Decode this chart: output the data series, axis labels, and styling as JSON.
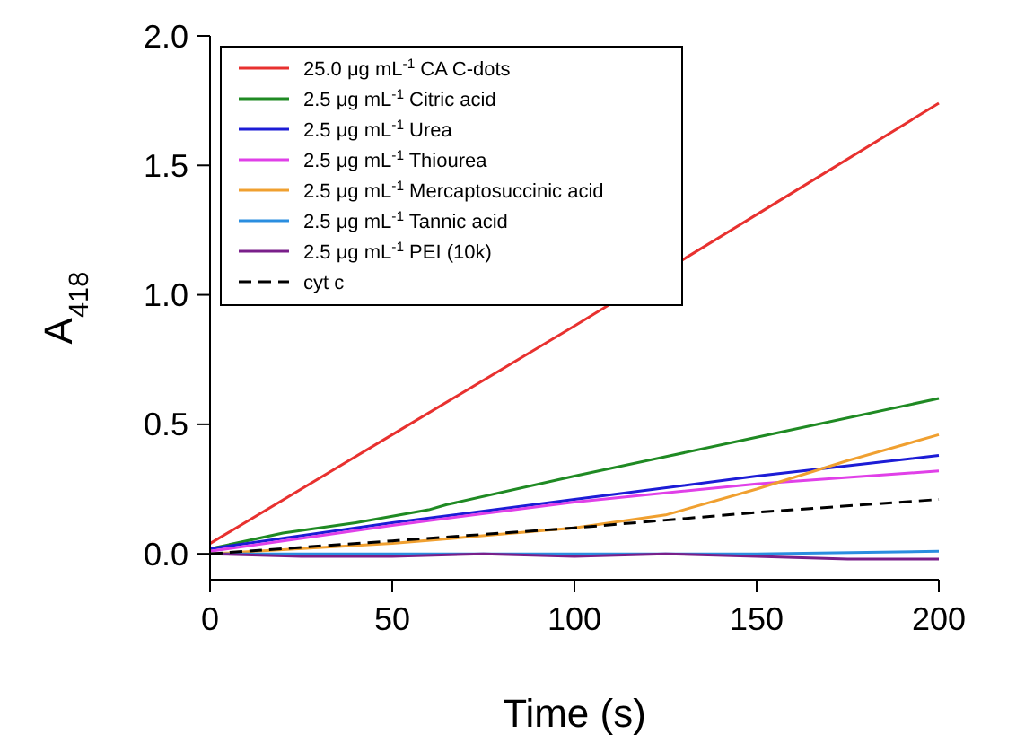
{
  "chart_data": {
    "type": "line",
    "xlabel": "Time (s)",
    "ylabel": "A$_{418}$",
    "xlim": [
      0,
      200
    ],
    "ylim": [
      -0.1,
      2.0
    ],
    "xticks": [
      0,
      50,
      100,
      150,
      200
    ],
    "yticks": [
      {
        "value": 0,
        "label": "0.0"
      },
      0.5,
      {
        "value": 1,
        "label": "1.0"
      },
      1.5,
      {
        "value": 2,
        "label": "2.0"
      }
    ],
    "legend": "top left",
    "grid": false,
    "series": [
      {
        "name": "25.0 μg mL$^{-1}$ CA C-dots",
        "color": "#e8312f",
        "x": [
          0,
          50,
          100,
          150,
          200
        ],
        "values": [
          0.04,
          0.46,
          0.88,
          1.31,
          1.74
        ]
      },
      {
        "name": "2.5 μg mL$^{-1}$ Citric acid",
        "color": "#1f8a23",
        "x": [
          0,
          20,
          40,
          60,
          65,
          100,
          150,
          200
        ],
        "values": [
          0.02,
          0.08,
          0.12,
          0.17,
          0.19,
          0.3,
          0.45,
          0.6
        ]
      },
      {
        "name": "2.5 μg mL$^{-1}$ Urea",
        "color": "#1c1cd6",
        "x": [
          0,
          50,
          100,
          150,
          200
        ],
        "values": [
          0.02,
          0.12,
          0.21,
          0.3,
          0.38
        ]
      },
      {
        "name": "2.5 μg mL$^{-1}$ Thiourea",
        "color": "#e040e8",
        "x": [
          0,
          50,
          100,
          150,
          200
        ],
        "values": [
          0.01,
          0.11,
          0.2,
          0.27,
          0.32
        ]
      },
      {
        "name": "2.5 μg mL$^{-1}$ Mercaptosuccinic acid",
        "color": "#f0a030",
        "x": [
          0,
          50,
          100,
          125,
          150,
          175,
          200
        ],
        "values": [
          0.0,
          0.04,
          0.1,
          0.15,
          0.25,
          0.36,
          0.46
        ]
      },
      {
        "name": "2.5 μg mL$^{-1}$ Tannic acid",
        "color": "#2a8ee0",
        "x": [
          0,
          50,
          100,
          150,
          200
        ],
        "values": [
          0.0,
          0.0,
          0.0,
          0.0,
          0.01
        ]
      },
      {
        "name": "2.5 μg mL$^{-1}$ PEI (10k)",
        "color": "#7a1f8a",
        "x": [
          0,
          25,
          50,
          75,
          100,
          125,
          150,
          175,
          200
        ],
        "values": [
          0.0,
          -0.01,
          -0.01,
          0.0,
          -0.01,
          0.0,
          -0.01,
          -0.02,
          -0.02
        ]
      },
      {
        "name": "cyt c",
        "color": "#000000",
        "line_style": "dashed",
        "x": [
          0,
          50,
          100,
          150,
          200
        ],
        "values": [
          0.0,
          0.05,
          0.1,
          0.16,
          0.21
        ]
      }
    ]
  }
}
